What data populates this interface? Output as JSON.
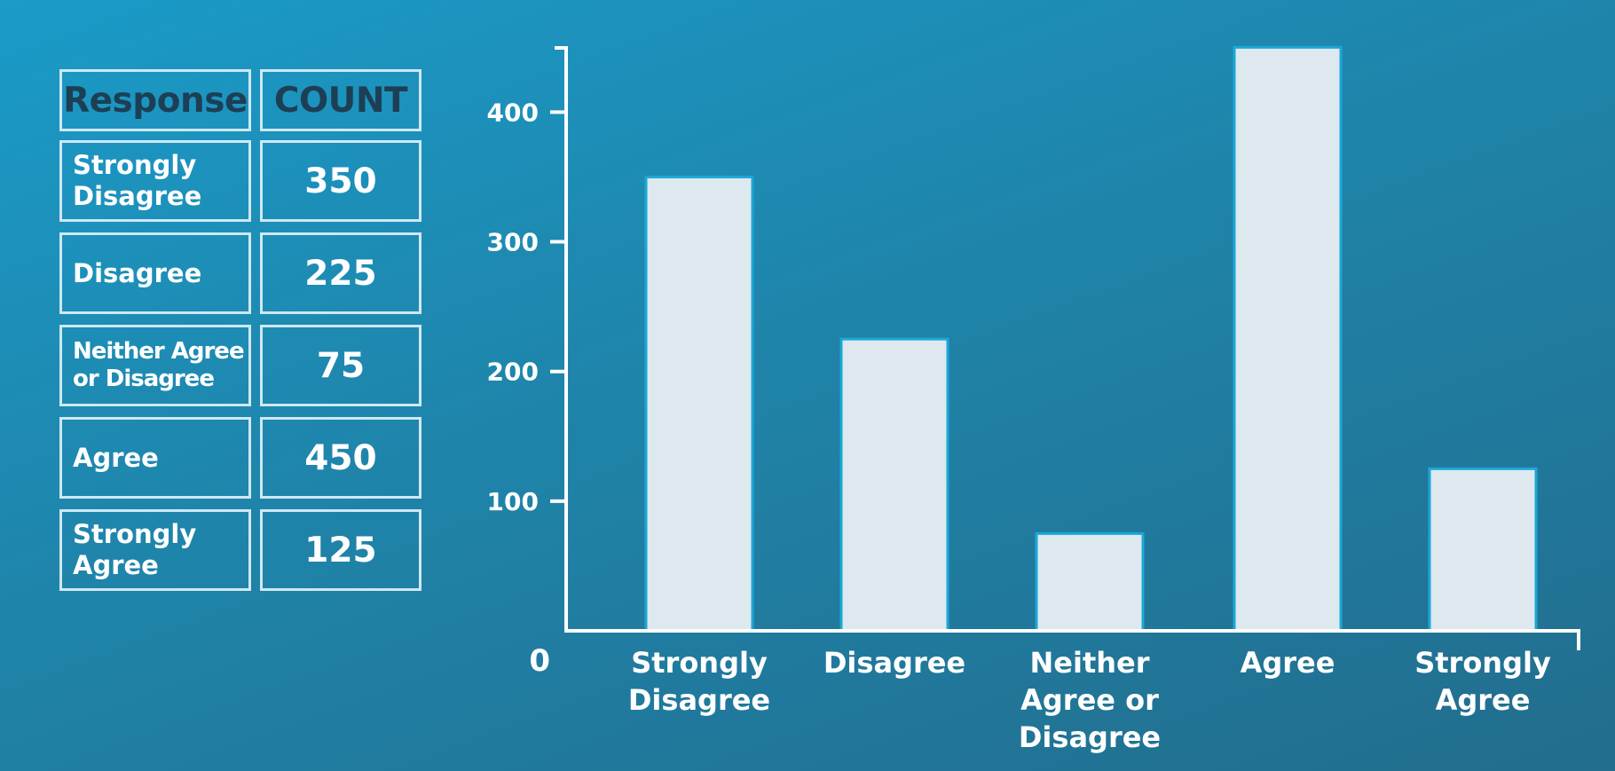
{
  "table": {
    "headers": [
      "Response",
      "COUNT"
    ],
    "rows": [
      {
        "response": "Strongly\nDisagree",
        "count": "350"
      },
      {
        "response": "Disagree",
        "count": "225"
      },
      {
        "response": "Neither Agree\nor Disagree",
        "count": "75"
      },
      {
        "response": "Agree",
        "count": "450"
      },
      {
        "response": "Strongly\nAgree",
        "count": "125"
      }
    ]
  },
  "chart_data": {
    "type": "bar",
    "categories": [
      [
        "Strongly",
        "Disagree"
      ],
      [
        "Disagree"
      ],
      [
        "Neither",
        "Agree or",
        "Disagree"
      ],
      [
        "Agree"
      ],
      [
        "Strongly",
        "Agree"
      ]
    ],
    "values": [
      350,
      225,
      75,
      450,
      125
    ],
    "yticks": [
      "0",
      "100",
      "200",
      "300",
      "400"
    ],
    "ylim": [
      0,
      450
    ],
    "grid": false
  },
  "colors": {
    "bar_fill": "#dde9ef",
    "bar_stroke": "#1ba7d8",
    "background_start": "#1a9bc8",
    "background_end": "#226d8d",
    "header_text": "#1d3f55"
  }
}
